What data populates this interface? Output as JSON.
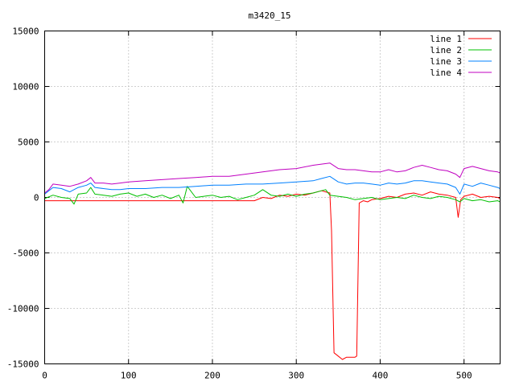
{
  "chart_data": {
    "type": "line",
    "title": "m3420_15",
    "xlabel": "",
    "ylabel": "",
    "xlim": [
      0,
      543
    ],
    "ylim": [
      -15000,
      15000
    ],
    "xticks": [
      0,
      100,
      200,
      300,
      400,
      500
    ],
    "yticks": [
      -15000,
      -10000,
      -5000,
      0,
      5000,
      10000,
      15000
    ],
    "grid": true,
    "legend_position": "top-right",
    "series": [
      {
        "name": "line 1",
        "color": "#ff0000",
        "x": [
          0,
          10,
          20,
          40,
          60,
          80,
          100,
          120,
          140,
          160,
          180,
          200,
          220,
          240,
          250,
          260,
          270,
          280,
          290,
          300,
          310,
          320,
          330,
          335,
          340,
          342,
          345,
          350,
          355,
          360,
          365,
          370,
          372,
          375,
          380,
          385,
          390,
          400,
          410,
          420,
          430,
          440,
          450,
          460,
          470,
          480,
          490,
          493,
          496,
          500,
          510,
          520,
          530,
          540,
          543
        ],
        "y": [
          -300,
          -300,
          -300,
          -300,
          -300,
          -300,
          -300,
          -300,
          -300,
          -300,
          -300,
          -300,
          -300,
          -300,
          -300,
          0,
          -100,
          200,
          100,
          300,
          200,
          400,
          600,
          500,
          400,
          -3000,
          -14000,
          -14300,
          -14600,
          -14400,
          -14400,
          -14400,
          -14300,
          -500,
          -300,
          -400,
          -200,
          -100,
          100,
          0,
          300,
          400,
          200,
          500,
          300,
          200,
          0,
          -1800,
          -200,
          100,
          300,
          0,
          100,
          0,
          -100
        ]
      },
      {
        "name": "line 2",
        "color": "#00c000",
        "x": [
          0,
          10,
          20,
          30,
          35,
          40,
          50,
          55,
          60,
          70,
          80,
          90,
          100,
          110,
          120,
          130,
          140,
          150,
          160,
          165,
          170,
          180,
          190,
          200,
          210,
          220,
          230,
          240,
          250,
          260,
          270,
          280,
          290,
          300,
          310,
          320,
          330,
          335,
          340,
          350,
          360,
          370,
          380,
          390,
          400,
          410,
          420,
          430,
          440,
          450,
          460,
          470,
          480,
          490,
          495,
          500,
          510,
          520,
          530,
          540,
          543
        ],
        "y": [
          -100,
          200,
          0,
          -100,
          -600,
          300,
          400,
          900,
          300,
          200,
          100,
          300,
          400,
          100,
          300,
          0,
          200,
          -100,
          200,
          -500,
          1000,
          0,
          100,
          200,
          0,
          100,
          -200,
          0,
          200,
          700,
          200,
          100,
          300,
          100,
          300,
          400,
          600,
          700,
          200,
          100,
          0,
          -200,
          -100,
          0,
          -200,
          -100,
          0,
          -100,
          200,
          0,
          -100,
          100,
          0,
          -200,
          -400,
          -100,
          -300,
          -200,
          -400,
          -300,
          -400
        ]
      },
      {
        "name": "line 3",
        "color": "#0080ff",
        "x": [
          0,
          5,
          10,
          20,
          30,
          40,
          50,
          55,
          60,
          70,
          80,
          90,
          100,
          120,
          140,
          160,
          180,
          200,
          220,
          240,
          260,
          280,
          300,
          320,
          330,
          340,
          350,
          360,
          370,
          380,
          390,
          400,
          410,
          420,
          430,
          440,
          450,
          460,
          470,
          480,
          490,
          495,
          500,
          510,
          520,
          530,
          540,
          543
        ],
        "y": [
          300,
          600,
          900,
          800,
          500,
          900,
          1100,
          1300,
          900,
          800,
          700,
          700,
          800,
          800,
          900,
          900,
          1000,
          1100,
          1100,
          1200,
          1200,
          1300,
          1400,
          1500,
          1700,
          1900,
          1400,
          1200,
          1300,
          1300,
          1200,
          1100,
          1300,
          1200,
          1300,
          1500,
          1500,
          1400,
          1300,
          1200,
          900,
          300,
          1200,
          1000,
          1300,
          1100,
          900,
          800
        ]
      },
      {
        "name": "line 4",
        "color": "#c000c0",
        "x": [
          0,
          5,
          10,
          20,
          30,
          40,
          50,
          55,
          60,
          70,
          80,
          90,
          100,
          120,
          140,
          160,
          180,
          200,
          220,
          240,
          260,
          280,
          300,
          320,
          330,
          340,
          350,
          360,
          370,
          380,
          390,
          400,
          410,
          420,
          430,
          440,
          450,
          460,
          470,
          480,
          490,
          495,
          500,
          510,
          520,
          530,
          540,
          543
        ],
        "y": [
          400,
          700,
          1200,
          1100,
          1000,
          1200,
          1500,
          1800,
          1300,
          1300,
          1200,
          1300,
          1400,
          1500,
          1600,
          1700,
          1800,
          1900,
          1900,
          2100,
          2300,
          2500,
          2600,
          2900,
          3000,
          3100,
          2600,
          2500,
          2500,
          2400,
          2300,
          2300,
          2500,
          2300,
          2400,
          2700,
          2900,
          2700,
          2500,
          2400,
          2100,
          1800,
          2600,
          2800,
          2600,
          2400,
          2300,
          2200
        ]
      }
    ]
  }
}
